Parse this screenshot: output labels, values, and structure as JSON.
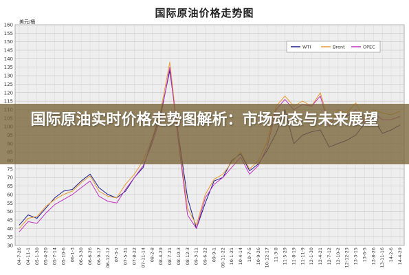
{
  "title": "国际原油价格走势图",
  "overlay_title": "国际原油实时价格走势图解析：市场动态与未来展望",
  "chart_data": {
    "type": "line",
    "title": "国际原油价格走势图",
    "ylabel": "美元/桶",
    "xlabel": "",
    "ylim": [
      30,
      160
    ],
    "yticks": [
      30,
      35,
      40,
      45,
      50,
      55,
      60,
      65,
      70,
      75,
      80,
      85,
      90,
      95,
      100,
      105,
      110,
      115,
      120,
      125,
      130,
      135,
      140,
      145,
      150,
      155,
      160
    ],
    "grid": true,
    "legend_position": "top-right",
    "x": [
      "04-7-26",
      "04-11-1",
      "05-1-30",
      "05-4-20",
      "05-7-14",
      "05-10-6",
      "06-1-3",
      "06-3-30",
      "06-6-26",
      "06-9-17",
      "06-12-12",
      "07-3-1",
      "07-5-31",
      "07-8-22",
      "07-11-14",
      "08-2-8",
      "08-4-29",
      "08-7-21",
      "08-10-3",
      "08-12-3",
      "09-3-11",
      "09-6-22",
      "09-9-1",
      "09-11-22",
      "10-1-21",
      "10-4-14",
      "10-7-5",
      "10-9-26",
      "10-12-17",
      "11-3-8",
      "11-5-29",
      "11-8-19",
      "11-11-9",
      "12-1-30",
      "12-4-21",
      "12-7-12",
      "12-10-2",
      "12-12-23",
      "13-3-15",
      "13-6-5",
      "13-8-26",
      "13-11-16",
      "14-2-6",
      "14-4-29"
    ],
    "series": [
      {
        "name": "WTI",
        "color": "#1a1a8c",
        "values": [
          42,
          48,
          46,
          52,
          58,
          62,
          63,
          68,
          72,
          64,
          60,
          58,
          62,
          70,
          76,
          92,
          108,
          133,
          94,
          58,
          40,
          55,
          68,
          70,
          80,
          84,
          74,
          78,
          86,
          96,
          110,
          90,
          95,
          97,
          98,
          88,
          90,
          92,
          95,
          102,
          105,
          96,
          98,
          101
        ]
      },
      {
        "name": "Brent",
        "color": "#e69a2e",
        "values": [
          40,
          46,
          47,
          53,
          57,
          60,
          62,
          67,
          71,
          62,
          59,
          58,
          66,
          72,
          80,
          93,
          110,
          138,
          92,
          52,
          42,
          60,
          69,
          72,
          79,
          85,
          75,
          80,
          91,
          112,
          118,
          112,
          115,
          112,
          120,
          102,
          110,
          108,
          114,
          104,
          110,
          108,
          107,
          109
        ]
      },
      {
        "name": "OPEC",
        "color": "#c030c0",
        "values": [
          38,
          44,
          43,
          49,
          54,
          57,
          60,
          64,
          68,
          59,
          56,
          55,
          63,
          70,
          77,
          90,
          106,
          135,
          90,
          48,
          40,
          58,
          66,
          70,
          76,
          82,
          72,
          77,
          88,
          110,
          116,
          110,
          113,
          112,
          118,
          100,
          108,
          106,
          110,
          102,
          108,
          104,
          104,
          106
        ]
      }
    ]
  }
}
